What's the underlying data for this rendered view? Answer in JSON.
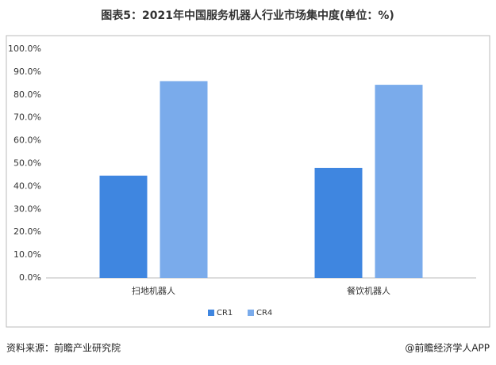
{
  "chart_data": {
    "type": "bar",
    "title": "图表5：2021年中国服务机器人行业市场集中度(单位：%)",
    "categories": [
      "扫地机器人",
      "餐饮机器人"
    ],
    "series": [
      {
        "name": "CR1",
        "color": "#3f86e0",
        "values": [
          44.7,
          48.1
        ]
      },
      {
        "name": "CR4",
        "color": "#7aabeb",
        "values": [
          86.0,
          84.4
        ]
      }
    ],
    "ylim": [
      0,
      100
    ],
    "yticks": [
      {
        "value": 0,
        "label": "0.0%"
      },
      {
        "value": 10,
        "label": "10.0%"
      },
      {
        "value": 20,
        "label": "20.0%"
      },
      {
        "value": 30,
        "label": "30.0%"
      },
      {
        "value": 40,
        "label": "40.0%"
      },
      {
        "value": 50,
        "label": "50.0%"
      },
      {
        "value": 60,
        "label": "60.0%"
      },
      {
        "value": 70,
        "label": "70.0%"
      },
      {
        "value": 80,
        "label": "80.0%"
      },
      {
        "value": 90,
        "label": "90.0%"
      },
      {
        "value": 100,
        "label": "100.0%"
      }
    ],
    "grid": false,
    "legend": "bottom",
    "source": "资料来源：前瞻产业研究院",
    "credit": "@前瞻经济学人APP"
  }
}
